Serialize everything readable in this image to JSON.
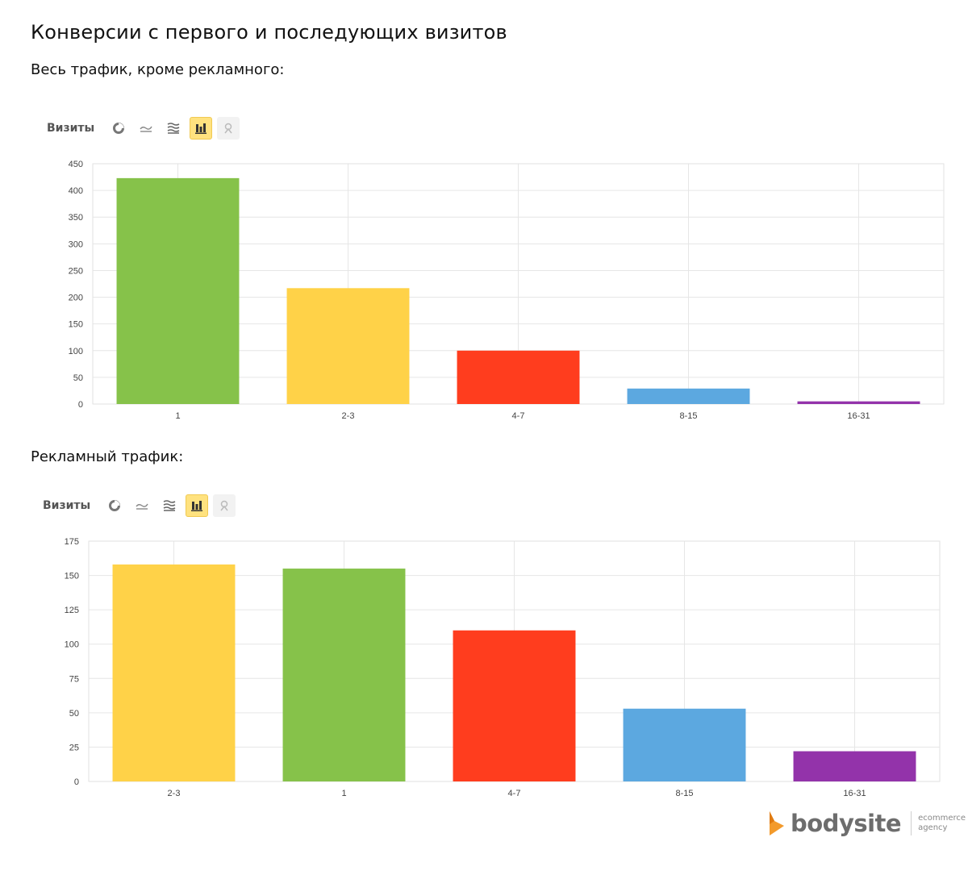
{
  "page": {
    "title": "Конверсии с первого и последующих визитов",
    "section1_label": "Весь трафик, кроме рекламного:",
    "section2_label": "Рекламный трафик:"
  },
  "toolbar": {
    "metric_label": "Визиты",
    "buttons": [
      {
        "icon": "pie-chart-icon",
        "active": false
      },
      {
        "icon": "line-chart-icon",
        "active": false
      },
      {
        "icon": "area-chart-icon",
        "active": false
      },
      {
        "icon": "bar-chart-icon",
        "active": true
      },
      {
        "icon": "map-pin-icon",
        "active": false,
        "disabled": true
      }
    ]
  },
  "brand": {
    "name": "bodysite",
    "tagline1": "ecommerce",
    "tagline2": "agency",
    "accent": "#f39a2b"
  },
  "chart_data": [
    {
      "type": "bar",
      "categories": [
        "1",
        "2-3",
        "4-7",
        "8-15",
        "16-31"
      ],
      "values": [
        423,
        217,
        100,
        29,
        5
      ],
      "colors": [
        "#86c24a",
        "#ffd248",
        "#ff3d1e",
        "#5ca8e0",
        "#9333aa"
      ],
      "ylim": [
        0,
        450
      ],
      "yticks": [
        0,
        50,
        100,
        150,
        200,
        250,
        300,
        350,
        400,
        450
      ],
      "grid": true,
      "legend": "none"
    },
    {
      "type": "bar",
      "categories": [
        "2-3",
        "1",
        "4-7",
        "8-15",
        "16-31"
      ],
      "values": [
        158,
        155,
        110,
        53,
        22
      ],
      "colors": [
        "#ffd248",
        "#86c24a",
        "#ff3d1e",
        "#5ca8e0",
        "#9333aa"
      ],
      "ylim": [
        0,
        175
      ],
      "yticks": [
        0,
        25,
        50,
        75,
        100,
        125,
        150,
        175
      ],
      "grid": true,
      "legend": "none"
    }
  ]
}
